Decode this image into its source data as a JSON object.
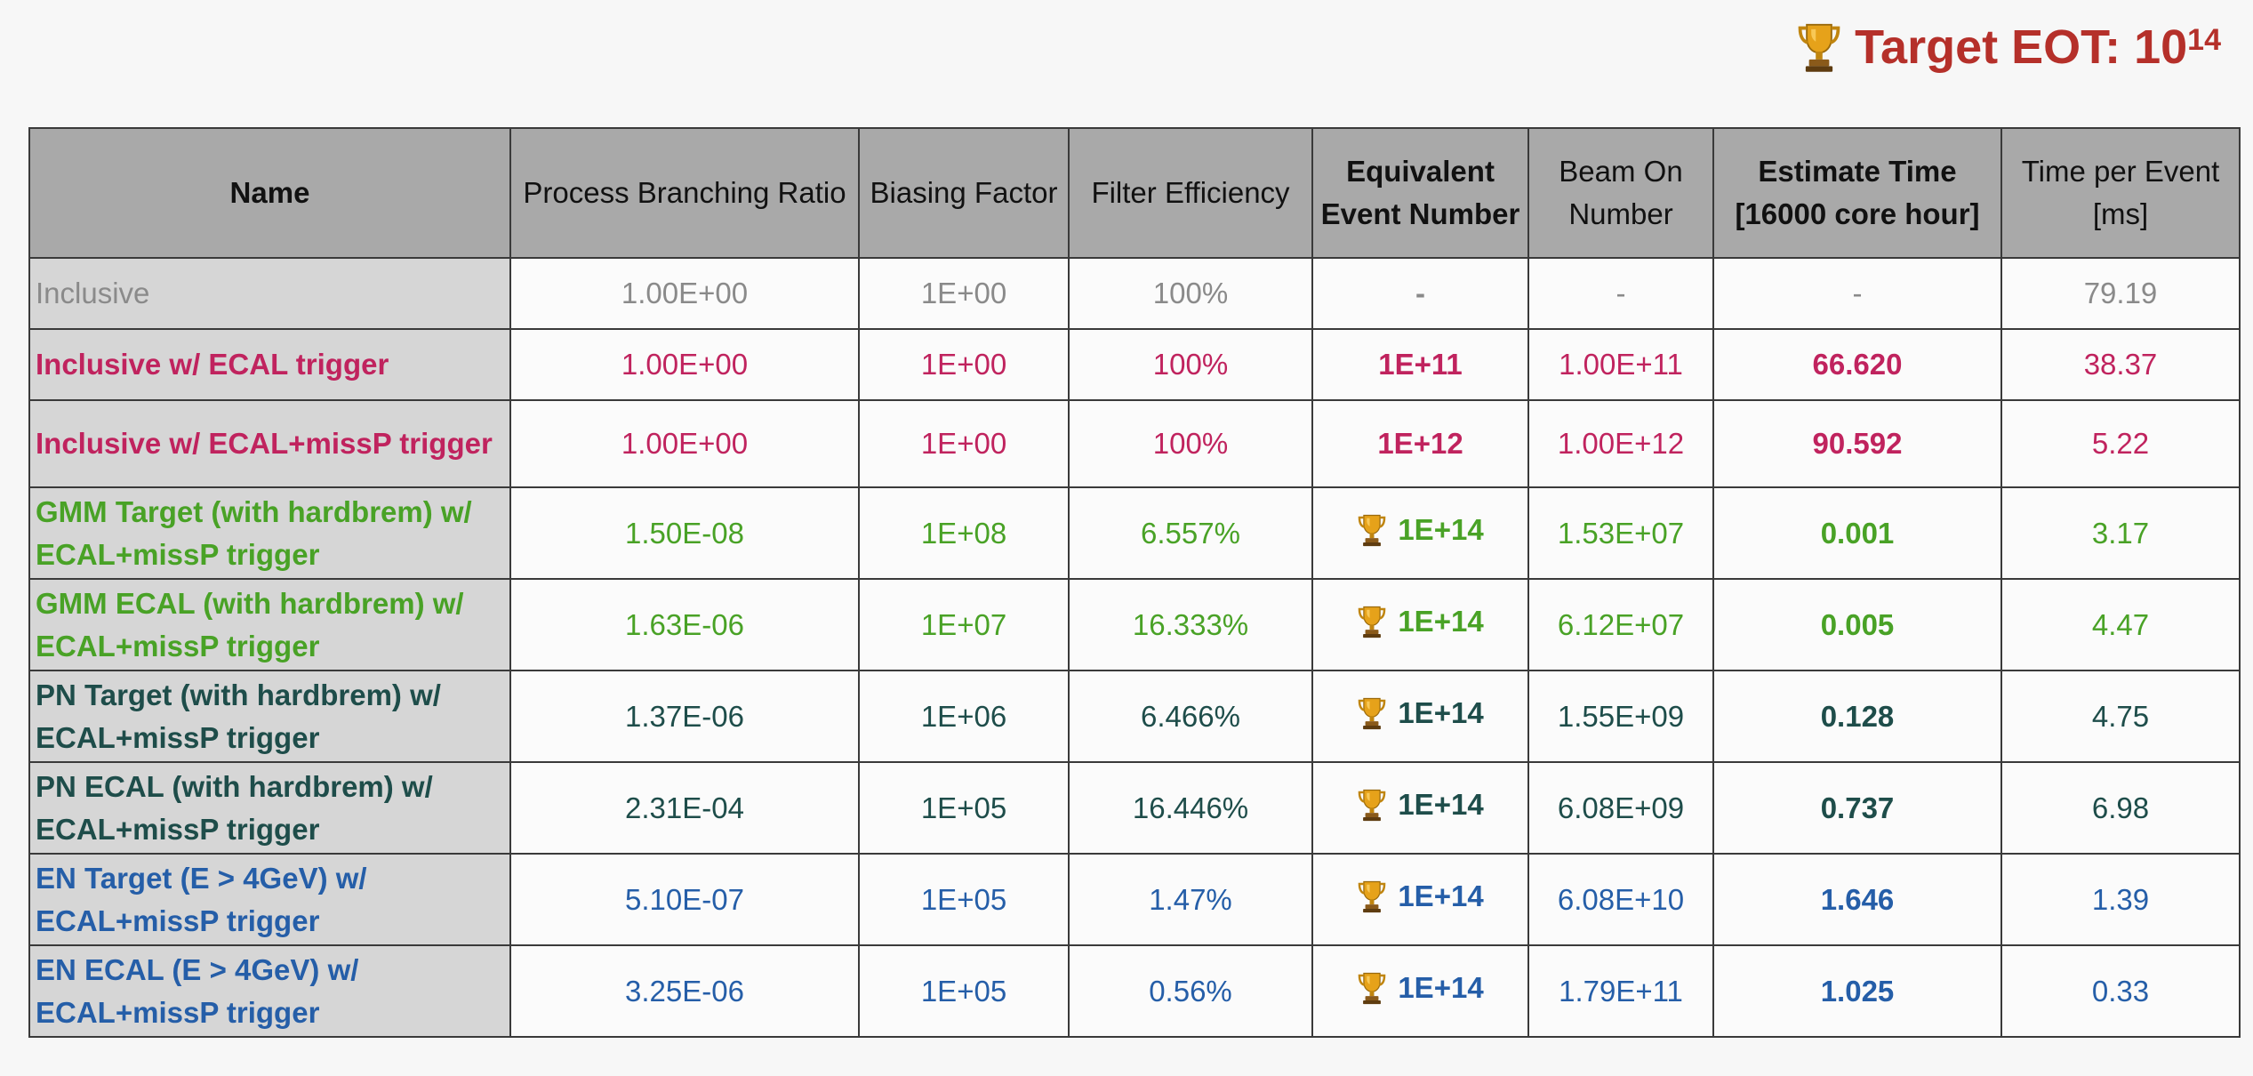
{
  "title": {
    "text": "Target EOT: 10",
    "exponent": "14",
    "icon": "trophy-icon"
  },
  "colors": {
    "title": "#b5302a",
    "header_bg": "#a9a9a9",
    "name_bg": "#d6d6d6",
    "inclusive": "#8a8a8a",
    "magenta": "#c0235e",
    "green": "#49a226",
    "dark_green": "#1e4d4a",
    "blue": "#255ea8"
  },
  "headers": {
    "name": "Name",
    "branching": "Process Branching Ratio",
    "biasing": "Biasing Factor",
    "filter": "Filter Efficiency",
    "equiv_1": "Equivalent",
    "equiv_2": "Event Number",
    "beam_1": "Beam On",
    "beam_2": "Number",
    "estimate_1": "Estimate Time",
    "estimate_2": "[16000 core hour]",
    "time_1": "Time per Event",
    "time_2": "[ms]"
  },
  "rows": [
    {
      "name_1": "Inclusive",
      "name_2": "",
      "branching": "1.00E+00",
      "biasing": "1E+00",
      "filter": "100%",
      "equiv": "-",
      "beam": "-",
      "estimate": "-",
      "time": "79.19"
    },
    {
      "name_1": "Inclusive w/ ECAL trigger",
      "name_2": "",
      "branching": "1.00E+00",
      "biasing": "1E+00",
      "filter": "100%",
      "equiv": "1E+11",
      "beam": "1.00E+11",
      "estimate": "66.620",
      "time": "38.37"
    },
    {
      "name_1": "Inclusive w/ ECAL+missP trigger",
      "name_2": "",
      "branching": "1.00E+00",
      "biasing": "1E+00",
      "filter": "100%",
      "equiv": "1E+12",
      "beam": "1.00E+12",
      "estimate": "90.592",
      "time": "5.22"
    },
    {
      "name_1": "GMM Target (with hardbrem) w/",
      "name_2": "ECAL+missP trigger",
      "branching": "1.50E-08",
      "biasing": "1E+08",
      "filter": "6.557%",
      "equiv": "1E+14",
      "beam": "1.53E+07",
      "estimate": "0.001",
      "time": "3.17"
    },
    {
      "name_1": "GMM ECAL (with hardbrem) w/",
      "name_2": "ECAL+missP trigger",
      "branching": "1.63E-06",
      "biasing": "1E+07",
      "filter": "16.333%",
      "equiv": "1E+14",
      "beam": "6.12E+07",
      "estimate": "0.005",
      "time": "4.47"
    },
    {
      "name_1": "PN Target (with hardbrem) w/",
      "name_2": "ECAL+missP trigger",
      "branching": "1.37E-06",
      "biasing": "1E+06",
      "filter": "6.466%",
      "equiv": "1E+14",
      "beam": "1.55E+09",
      "estimate": "0.128",
      "time": "4.75"
    },
    {
      "name_1": "PN ECAL (with hardbrem) w/",
      "name_2": "ECAL+missP trigger",
      "branching": "2.31E-04",
      "biasing": "1E+05",
      "filter": "16.446%",
      "equiv": "1E+14",
      "beam": "6.08E+09",
      "estimate": "0.737",
      "time": "6.98"
    },
    {
      "name_1": "EN Target (E > 4GeV) w/",
      "name_2": "ECAL+missP trigger",
      "branching": "5.10E-07",
      "biasing": "1E+05",
      "filter": "1.47%",
      "equiv": "1E+14",
      "beam": "6.08E+10",
      "estimate": "1.646",
      "time": "1.39"
    },
    {
      "name_1": "EN ECAL (E > 4GeV) w/",
      "name_2": "ECAL+missP trigger",
      "branching": "3.25E-06",
      "biasing": "1E+05",
      "filter": "0.56%",
      "equiv": "1E+14",
      "beam": "1.79E+11",
      "estimate": "1.025",
      "time": "0.33"
    }
  ]
}
